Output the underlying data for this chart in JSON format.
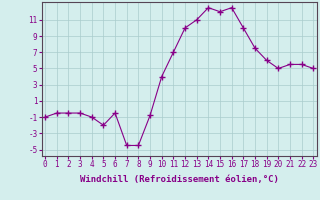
{
  "x": [
    0,
    1,
    2,
    3,
    4,
    5,
    6,
    7,
    8,
    9,
    10,
    11,
    12,
    13,
    14,
    15,
    16,
    17,
    18,
    19,
    20,
    21,
    22,
    23
  ],
  "y": [
    -1,
    -0.5,
    -0.5,
    -0.5,
    -1,
    -2,
    -0.5,
    -4.5,
    -4.5,
    -0.8,
    4,
    7,
    10,
    11,
    12.5,
    12,
    12.5,
    10,
    7.5,
    6,
    5,
    5.5,
    5.5,
    5
  ],
  "line_color": "#880088",
  "marker": "+",
  "marker_size": 4,
  "marker_linewidth": 1.0,
  "bg_color": "#d4eeed",
  "grid_color": "#aacccc",
  "xlabel": "Windchill (Refroidissement éolien,°C)",
  "xlabel_fontsize": 6.5,
  "xlabel_color": "#880088",
  "ytick_labels": [
    "",
    "-5",
    "",
    "-3",
    "",
    "-1",
    "",
    "1",
    "",
    "3",
    "",
    "5",
    "",
    "7",
    "",
    "9",
    "",
    "11",
    ""
  ],
  "yticks": [
    -6,
    -5,
    -4,
    -3,
    -2,
    -1,
    0,
    1,
    2,
    3,
    4,
    5,
    6,
    7,
    8,
    9,
    10,
    11,
    12
  ],
  "ytick_show": [
    -5,
    -3,
    -1,
    1,
    3,
    5,
    7,
    9,
    11
  ],
  "xticks": [
    0,
    1,
    2,
    3,
    4,
    5,
    6,
    7,
    8,
    9,
    10,
    11,
    12,
    13,
    14,
    15,
    16,
    17,
    18,
    19,
    20,
    21,
    22,
    23
  ],
  "ylim": [
    -5.8,
    13.2
  ],
  "xlim": [
    -0.3,
    23.3
  ]
}
